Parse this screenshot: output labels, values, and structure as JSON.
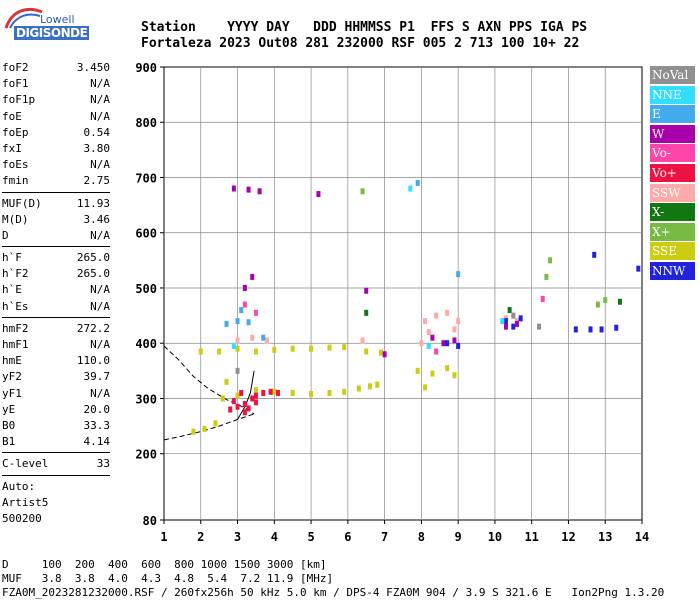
{
  "logo": {
    "top": "Lowell",
    "main": "DIGISONDE"
  },
  "header": {
    "line1": "Station    YYYY DAY   DDD HHMMSS P1  FFS S AXN PPS IGA PS",
    "line2": "Fortaleza 2023 Out08 281 232000 RSF 005 2 713 100 10+ 22"
  },
  "params": [
    {
      "label": "foF2",
      "value": "3.450"
    },
    {
      "label": "foF1",
      "value": "N/A"
    },
    {
      "label": "foF1p",
      "value": "N/A"
    },
    {
      "label": "foE",
      "value": "N/A"
    },
    {
      "label": "foEp",
      "value": "0.54"
    },
    {
      "label": "fxI",
      "value": "3.80"
    },
    {
      "label": "foEs",
      "value": "N/A"
    },
    {
      "label": "fmin",
      "value": "2.75"
    },
    {
      "label": "MUF(D)",
      "value": "11.93"
    },
    {
      "label": "M(D)",
      "value": "3.46"
    },
    {
      "label": "D",
      "value": "N/A"
    },
    {
      "label": "h`F",
      "value": "265.0"
    },
    {
      "label": "h`F2",
      "value": "265.0"
    },
    {
      "label": "h`E",
      "value": "N/A"
    },
    {
      "label": "h`Es",
      "value": "N/A"
    },
    {
      "label": "hmF2",
      "value": "272.2"
    },
    {
      "label": "hmF1",
      "value": "N/A"
    },
    {
      "label": "hmE",
      "value": "110.0"
    },
    {
      "label": "yF2",
      "value": "39.7"
    },
    {
      "label": "yF1",
      "value": "N/A"
    },
    {
      "label": "yE",
      "value": "20.0"
    },
    {
      "label": "B0",
      "value": "33.3"
    },
    {
      "label": "B1",
      "value": "4.14"
    },
    {
      "label": "C-level",
      "value": "33"
    }
  ],
  "auto": {
    "line1": "Auto:",
    "line2": "Artist5",
    "line3": "500200"
  },
  "legend": [
    {
      "label": "NoVal",
      "color": "#909090"
    },
    {
      "label": "NNE",
      "color": "#33ddff"
    },
    {
      "label": "E",
      "color": "#44aaee"
    },
    {
      "label": "W",
      "color": "#aa00aa"
    },
    {
      "label": "Vo-",
      "color": "#ff44aa"
    },
    {
      "label": "Vo+",
      "color": "#ee1144"
    },
    {
      "label": "SSW",
      "color": "#ffaaaa"
    },
    {
      "label": "X-",
      "color": "#117711"
    },
    {
      "label": "X+",
      "color": "#77bb44"
    },
    {
      "label": "SSE",
      "color": "#cccc11"
    },
    {
      "label": "NNW",
      "color": "#2222dd"
    }
  ],
  "footer": {
    "line1": "D     100  200  400  600  800 1000 1500 3000 [km]",
    "line2": "MUF   3.8  3.8  4.0  4.3  4.8  5.4  7.2 11.9 [MHz]",
    "line3": "FZA0M_2023281232000.RSF / 260fx256h 50 kHz 5.0 km / DPS-4 FZA0M 904 / 3.9 S 321.6 E   Ion2Png 1.3.20"
  },
  "chart_data": {
    "type": "scatter",
    "xlabel": "",
    "ylabel": "",
    "xlim": [
      1,
      14
    ],
    "ylim": [
      80,
      900
    ],
    "xticks": [
      "1",
      "2",
      "3",
      "4",
      "5",
      "6",
      "7",
      "8",
      "9",
      "10",
      "11",
      "12",
      "13",
      "14"
    ],
    "yticks": [
      {
        "value": 80,
        "label": "80"
      },
      {
        "value": 200,
        "label": "200"
      },
      {
        "value": 300,
        "label": "300"
      },
      {
        "value": 400,
        "label": "400"
      },
      {
        "value": 500,
        "label": "500"
      },
      {
        "value": 600,
        "label": "600"
      },
      {
        "value": 700,
        "label": "700"
      },
      {
        "value": 800,
        "label": "800"
      },
      {
        "value": 900,
        "label": "900"
      }
    ],
    "series": [
      {
        "name": "SSE",
        "color": "#cccc11",
        "points": [
          [
            1.8,
            240
          ],
          [
            2.1,
            245
          ],
          [
            2.4,
            255
          ],
          [
            2.0,
            385
          ],
          [
            2.5,
            385
          ],
          [
            3.0,
            390
          ],
          [
            3.5,
            385
          ],
          [
            4.0,
            388
          ],
          [
            4.5,
            390
          ],
          [
            5.0,
            390
          ],
          [
            5.5,
            392
          ],
          [
            5.9,
            393
          ],
          [
            3.5,
            315
          ],
          [
            4.0,
            312
          ],
          [
            4.5,
            310
          ],
          [
            5.0,
            308
          ],
          [
            5.5,
            310
          ],
          [
            5.9,
            312
          ],
          [
            6.3,
            318
          ],
          [
            6.6,
            322
          ],
          [
            6.8,
            325
          ],
          [
            7.9,
            350
          ],
          [
            8.3,
            345
          ],
          [
            8.7,
            355
          ],
          [
            8.9,
            342
          ],
          [
            6.5,
            385
          ],
          [
            6.9,
            383
          ],
          [
            2.6,
            300
          ],
          [
            3.0,
            305
          ],
          [
            2.7,
            330
          ],
          [
            8.1,
            320
          ]
        ]
      },
      {
        "name": "Vo+",
        "color": "#ee1144",
        "points": [
          [
            2.8,
            280
          ],
          [
            3.0,
            285
          ],
          [
            3.2,
            290
          ],
          [
            3.4,
            300
          ],
          [
            3.1,
            310
          ],
          [
            2.9,
            295
          ],
          [
            3.3,
            282
          ],
          [
            3.5,
            305
          ],
          [
            3.7,
            310
          ],
          [
            3.9,
            312
          ],
          [
            4.1,
            310
          ],
          [
            3.2,
            275
          ],
          [
            3.5,
            293
          ]
        ]
      },
      {
        "name": "SSW",
        "color": "#ffaaaa",
        "points": [
          [
            3.0,
            405
          ],
          [
            3.4,
            410
          ],
          [
            3.8,
            405
          ],
          [
            8.1,
            440
          ],
          [
            8.4,
            450
          ],
          [
            8.7,
            455
          ],
          [
            9.0,
            440
          ],
          [
            8.2,
            420
          ],
          [
            8.9,
            425
          ],
          [
            10.3,
            445
          ],
          [
            10.6,
            440
          ],
          [
            6.4,
            405
          ],
          [
            8.0,
            400
          ]
        ]
      },
      {
        "name": "W",
        "color": "#aa00aa",
        "points": [
          [
            2.9,
            680
          ],
          [
            3.3,
            678
          ],
          [
            3.6,
            675
          ],
          [
            3.2,
            500
          ],
          [
            3.4,
            520
          ],
          [
            8.3,
            410
          ],
          [
            8.6,
            400
          ],
          [
            8.9,
            405
          ],
          [
            10.3,
            430
          ],
          [
            10.6,
            435
          ],
          [
            5.2,
            670
          ],
          [
            7.0,
            380
          ],
          [
            6.5,
            495
          ]
        ]
      },
      {
        "name": "NNW",
        "color": "#2222dd",
        "points": [
          [
            8.7,
            400
          ],
          [
            9.0,
            395
          ],
          [
            10.3,
            440
          ],
          [
            10.5,
            430
          ],
          [
            10.7,
            445
          ],
          [
            12.2,
            425
          ],
          [
            12.6,
            425
          ],
          [
            12.9,
            425
          ],
          [
            12.7,
            560
          ],
          [
            13.3,
            428
          ],
          [
            13.9,
            535
          ]
        ]
      },
      {
        "name": "E",
        "color": "#44aaee",
        "points": [
          [
            2.7,
            435
          ],
          [
            3.0,
            440
          ],
          [
            3.3,
            438
          ],
          [
            3.7,
            410
          ],
          [
            3.1,
            460
          ],
          [
            9.0,
            525
          ],
          [
            7.9,
            690
          ]
        ]
      },
      {
        "name": "NNE",
        "color": "#33ddff",
        "points": [
          [
            7.7,
            680
          ],
          [
            8.2,
            395
          ],
          [
            10.2,
            440
          ],
          [
            2.9,
            395
          ]
        ]
      },
      {
        "name": "X+",
        "color": "#77bb44",
        "points": [
          [
            6.4,
            675
          ],
          [
            11.4,
            520
          ],
          [
            11.5,
            550
          ],
          [
            12.8,
            470
          ],
          [
            13.0,
            478
          ]
        ]
      },
      {
        "name": "X-",
        "color": "#117711",
        "points": [
          [
            13.4,
            475
          ],
          [
            6.5,
            455
          ],
          [
            10.4,
            460
          ]
        ]
      },
      {
        "name": "Vo-",
        "color": "#ff44aa",
        "points": [
          [
            3.2,
            470
          ],
          [
            3.5,
            455
          ],
          [
            11.3,
            480
          ],
          [
            8.4,
            385
          ]
        ]
      },
      {
        "name": "NoVal",
        "color": "#909090",
        "points": [
          [
            10.5,
            450
          ],
          [
            11.2,
            430
          ],
          [
            3.0,
            350
          ]
        ]
      }
    ],
    "curves": [
      {
        "name": "profile-lower",
        "color": "#000000",
        "dash": true,
        "points": [
          [
            1,
            225
          ],
          [
            1.5,
            232
          ],
          [
            2.0,
            240
          ],
          [
            2.5,
            250
          ],
          [
            3.0,
            262
          ],
          [
            3.45,
            272
          ]
        ]
      },
      {
        "name": "profile-upper",
        "color": "#000000",
        "dash": true,
        "points": [
          [
            1,
            395
          ],
          [
            1.4,
            370
          ],
          [
            1.8,
            340
          ],
          [
            2.2,
            318
          ],
          [
            2.7,
            298
          ],
          [
            3.2,
            283
          ],
          [
            3.45,
            272
          ]
        ]
      },
      {
        "name": "trace",
        "color": "#000000",
        "dash": false,
        "points": [
          [
            3.0,
            262
          ],
          [
            3.2,
            285
          ],
          [
            3.35,
            310
          ],
          [
            3.45,
            350
          ]
        ]
      }
    ]
  }
}
